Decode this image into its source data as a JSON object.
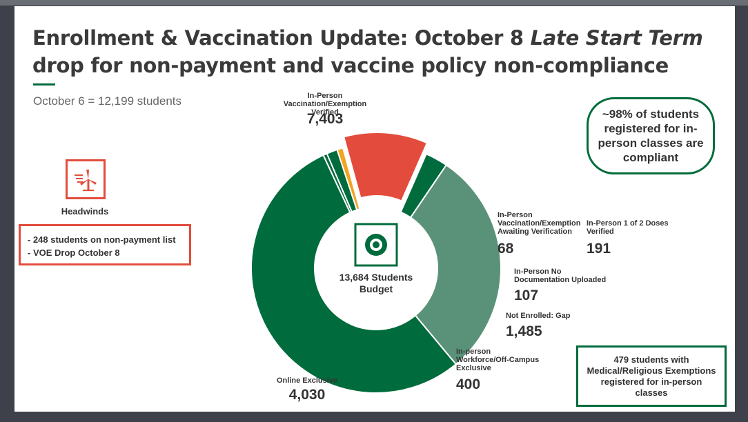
{
  "title_line1_main": "Enrollment & Vaccination Update: October 8 ",
  "title_line1_italic": "Late Start Term",
  "title_line2": "drop for non-payment and vaccine policy non-compliance",
  "subtitle": "October 6 = 12,199 students",
  "headwinds": {
    "icon": "wind-turbine-icon",
    "label": "Headwinds",
    "items": [
      "- 248 students on non-payment list",
      "- VOE Drop October 8"
    ]
  },
  "compliance_note": "~98% of students registered for in-person classes are compliant",
  "exemption_note": "479 students with Medical/Religious Exemptions registered for in-person classes",
  "colors": {
    "dark_green": "#006b3c",
    "medium_green": "#5a9279",
    "red": "#e34c3c",
    "orange": "#f2a322",
    "accent": "#006b3c"
  },
  "chart_data": {
    "type": "pie",
    "variant": "donut",
    "center_icon": "target-icon",
    "center_label_line1": "13,684 Students",
    "center_label_line2": "Budget",
    "slices": [
      {
        "label_lines": [
          "In-Person",
          "Vaccination/Exemption",
          "Verified"
        ],
        "value": 7403,
        "value_text": "7,403",
        "color": "#006b3c"
      },
      {
        "label_lines": [
          "In-Person",
          "Vaccination/Exemption",
          "Awaiting Verification"
        ],
        "value": 68,
        "value_text": "68",
        "color": "#006b3c"
      },
      {
        "label_lines": [
          "In-Person 1 of 2 Doses",
          "Verified"
        ],
        "value": 191,
        "value_text": "191",
        "color": "#006b3c"
      },
      {
        "label_lines": [
          "In-Person No",
          "Documentation Uploaded"
        ],
        "value": 107,
        "value_text": "107",
        "color": "#f2a322"
      },
      {
        "label_lines": [
          "Not Enrolled: Gap"
        ],
        "value": 1485,
        "value_text": "1,485",
        "color": "#e34c3c"
      },
      {
        "label_lines": [
          "In-person",
          "Workforce/Off-Campus",
          "Exclusive"
        ],
        "value": 400,
        "value_text": "400",
        "color": "#006b3c"
      },
      {
        "label_lines": [
          "Online Exclusive"
        ],
        "value": 4030,
        "value_text": "4,030",
        "color": "#5a9279"
      }
    ]
  }
}
